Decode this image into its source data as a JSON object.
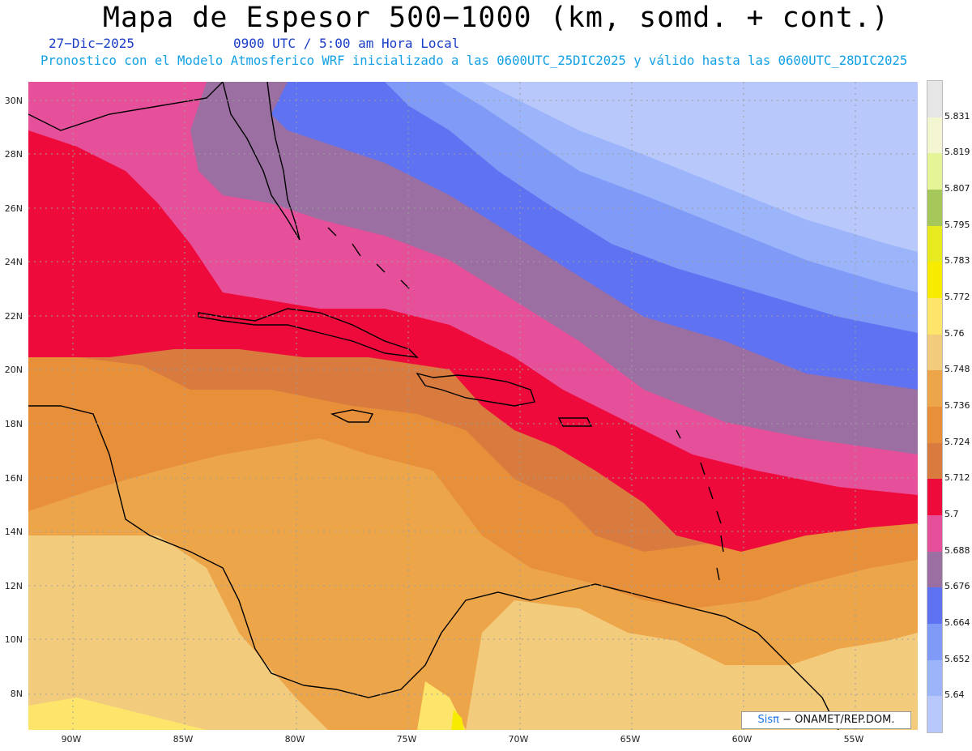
{
  "header": {
    "title": "Mapa de Espesor 500−1000 (km, somd. + cont.)",
    "date": "27−Dic−2025",
    "time": "0900 UTC / 5:00 am Hora Local",
    "description": "Pronostico con el Modelo Atmosferico WRF inicializado a las 0600UTC_25DIC2025 y válido hasta las  0600UTC_28DIC2025"
  },
  "axes": {
    "lat_labels": [
      "30N",
      "28N",
      "26N",
      "24N",
      "22N",
      "20N",
      "18N",
      "16N",
      "14N",
      "12N",
      "10N",
      "8N"
    ],
    "lon_labels": [
      "90W",
      "85W",
      "80W",
      "75W",
      "70W",
      "65W",
      "60W",
      "55W"
    ]
  },
  "colorbar": {
    "labels": [
      "5.831",
      "5.819",
      "5.807",
      "5.795",
      "5.783",
      "5.772",
      "5.76",
      "5.748",
      "5.736",
      "5.724",
      "5.712",
      "5.7",
      "5.688",
      "5.676",
      "5.664",
      "5.652",
      "5.64"
    ],
    "colors": [
      "#e6e6e6",
      "#f4f6d2",
      "#e4f496",
      "#a6c85a",
      "#e6ea1e",
      "#f7eb00",
      "#fde46a",
      "#f2cb7c",
      "#eda54a",
      "#e88f39",
      "#d97b3e",
      "#ee0b3c",
      "#e6509b",
      "#9b6fa2",
      "#5f72f2",
      "#7f9af7",
      "#9cb4fa",
      "#b8c8fb"
    ]
  },
  "credit": {
    "sis": "Sisπ",
    "rest": "− ONAMET/REP.DOM."
  },
  "colors": {
    "title_blue": "#1a3ec8",
    "desc_blue": "#12a0e6"
  }
}
